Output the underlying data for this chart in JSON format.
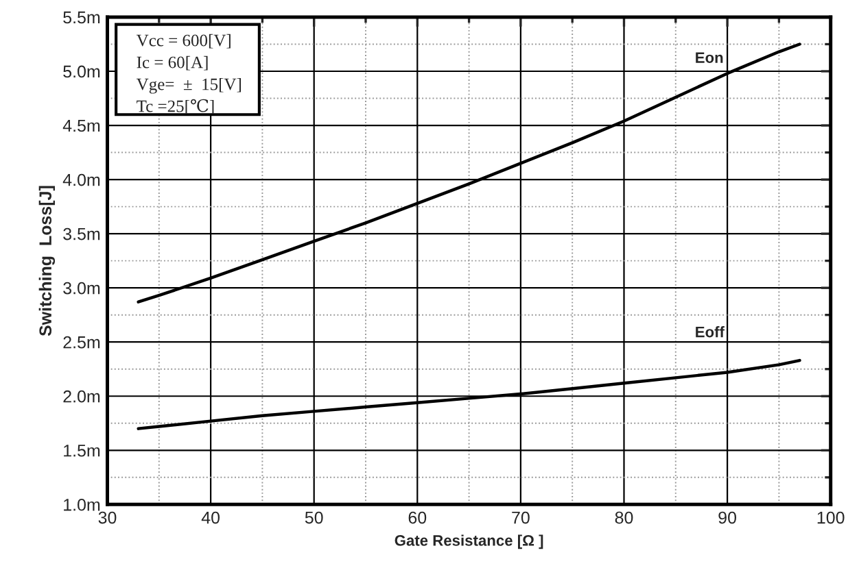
{
  "chart_data": {
    "type": "line",
    "xlabel": "Gate Resistance [Ω ]",
    "ylabel": "Switching  Loss[J]",
    "annotations": [
      "Vcc = 600[V]",
      "Ic = 60[A]",
      "Vge=  ±  15[V]",
      "Tc =25[℃]"
    ],
    "series": [
      {
        "name": "Eon",
        "color": "#000000",
        "x": [
          33,
          35,
          40,
          45,
          50,
          55,
          60,
          65,
          70,
          75,
          80,
          85,
          90,
          95,
          97
        ],
        "values": [
          2.87,
          2.93,
          3.09,
          3.26,
          3.43,
          3.6,
          3.78,
          3.96,
          4.15,
          4.34,
          4.54,
          4.76,
          4.98,
          5.18,
          5.25
        ]
      },
      {
        "name": "Eoff",
        "color": "#000000",
        "x": [
          33,
          35,
          40,
          45,
          50,
          55,
          60,
          65,
          70,
          75,
          80,
          85,
          90,
          95,
          97
        ],
        "values": [
          1.7,
          1.72,
          1.77,
          1.82,
          1.86,
          1.9,
          1.94,
          1.98,
          2.02,
          2.07,
          2.12,
          2.17,
          2.22,
          2.29,
          2.33
        ]
      }
    ],
    "xlim": [
      30,
      100
    ],
    "xticks": [
      30,
      40,
      50,
      60,
      70,
      80,
      90,
      100
    ],
    "ylim": [
      1.0,
      5.5
    ],
    "yticks": [
      {
        "value": 1.0,
        "label": "1.0m"
      },
      {
        "value": 1.5,
        "label": "1.5m"
      },
      {
        "value": 2.0,
        "label": "2.0m"
      },
      {
        "value": 2.5,
        "label": "2.5m"
      },
      {
        "value": 3.0,
        "label": "3.0m"
      },
      {
        "value": 3.5,
        "label": "3.5m"
      },
      {
        "value": 4.0,
        "label": "4.0m"
      },
      {
        "value": 4.5,
        "label": "4.5m"
      },
      {
        "value": 5.0,
        "label": "5.0m"
      },
      {
        "value": 5.5,
        "label": "5.5m"
      }
    ],
    "grid": true,
    "legend": false,
    "marker": "none",
    "line_style": "solid"
  }
}
